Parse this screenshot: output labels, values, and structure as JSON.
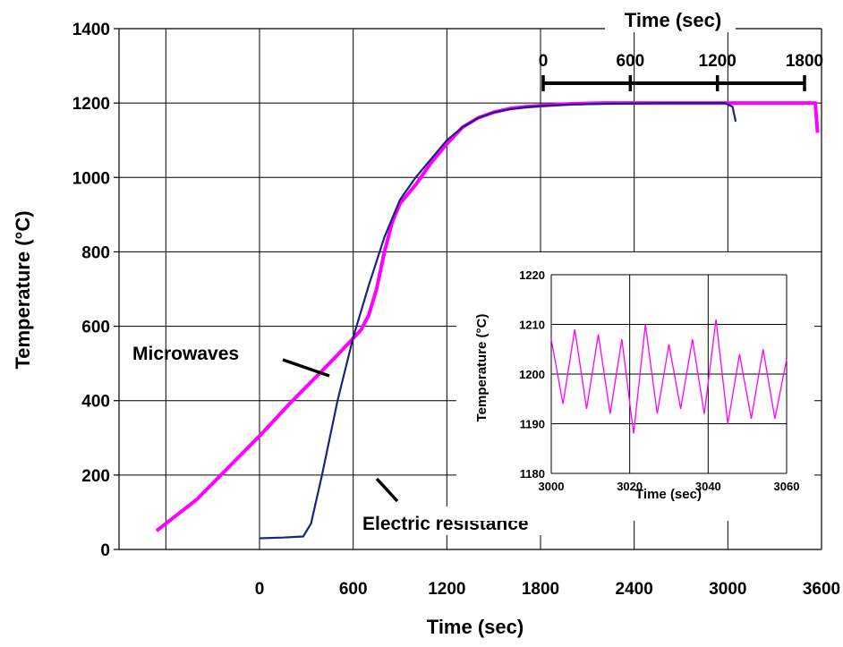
{
  "chart_data": [
    {
      "type": "line",
      "xlabel": "Time (sec)",
      "ylabel": "Temperature (°C)",
      "ylim": [
        0,
        1400
      ],
      "yticks": [
        "0",
        "200",
        "400",
        "600",
        "800",
        "1000",
        "1200",
        "1400"
      ],
      "xlim": [
        -900,
        3600
      ],
      "xticks": [
        "0",
        "600",
        "1200",
        "1800",
        "2400",
        "3000",
        "3600"
      ],
      "grid": true,
      "series": [
        {
          "name": "Microwaves",
          "color": "#ff00ff",
          "x": [
            -660,
            -400,
            -200,
            0,
            200,
            400,
            550,
            650,
            700,
            750,
            800,
            850,
            900,
            1000,
            1100,
            1200,
            1300,
            1400,
            1500,
            1600,
            1700,
            1800,
            2000,
            2200,
            2400,
            2600,
            2800,
            3000,
            3200,
            3400,
            3560,
            3575
          ],
          "y": [
            50,
            135,
            220,
            305,
            395,
            480,
            545,
            590,
            630,
            700,
            800,
            880,
            930,
            980,
            1040,
            1090,
            1135,
            1160,
            1175,
            1185,
            1190,
            1193,
            1198,
            1200,
            1200,
            1200,
            1200,
            1200,
            1200,
            1200,
            1200,
            1120
          ]
        },
        {
          "name": "Electric resistance",
          "color": "#1a237e",
          "x": [
            0,
            150,
            280,
            330,
            400,
            500,
            600,
            700,
            800,
            900,
            1000,
            1100,
            1200,
            1300,
            1400,
            1500,
            1600,
            1700,
            1800,
            2000,
            2200,
            2400,
            2600,
            2800,
            2980,
            3030,
            3050
          ],
          "y": [
            30,
            32,
            35,
            70,
            200,
            400,
            570,
            710,
            840,
            940,
            1000,
            1050,
            1100,
            1135,
            1160,
            1175,
            1183,
            1188,
            1192,
            1196,
            1198,
            1199,
            1200,
            1200,
            1200,
            1190,
            1150
          ]
        }
      ],
      "annotations": [
        "Microwaves",
        "Electric resistance"
      ],
      "secondary_x_axis": {
        "label": "Time (sec)",
        "ticks": [
          "0",
          "600",
          "1200",
          "1800"
        ]
      }
    },
    {
      "type": "line",
      "xlabel": "Time (sec)",
      "ylabel": "Temperature (°C)",
      "ylim": [
        1180,
        1220
      ],
      "yticks": [
        "1180",
        "1190",
        "1200",
        "1210",
        "1220"
      ],
      "xlim": [
        3000,
        3060
      ],
      "xticks": [
        "3000",
        "3020",
        "3040",
        "3060"
      ],
      "grid": true,
      "series": [
        {
          "color": "#ff00ff",
          "x": [
            3000,
            3003,
            3006,
            3009,
            3012,
            3015,
            3018,
            3021,
            3024,
            3027,
            3030,
            3033,
            3036,
            3039,
            3042,
            3045,
            3048,
            3051,
            3054,
            3057,
            3060
          ],
          "y": [
            1207,
            1194,
            1209,
            1193,
            1208,
            1192,
            1207,
            1188,
            1210,
            1192,
            1206,
            1193,
            1207,
            1192,
            1211,
            1190,
            1204,
            1191,
            1205,
            1191,
            1203
          ]
        }
      ]
    }
  ]
}
